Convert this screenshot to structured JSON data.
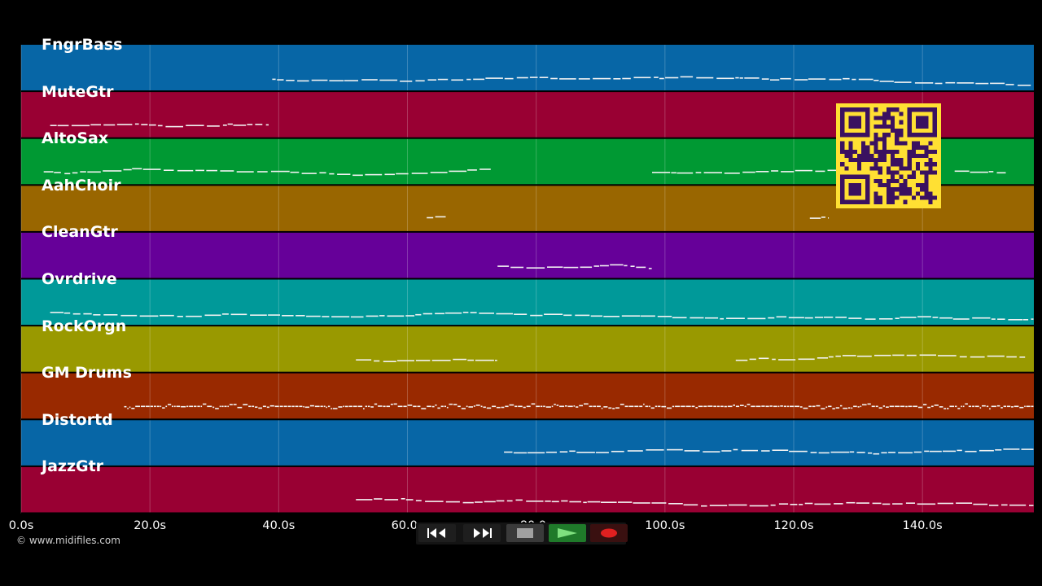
{
  "timeline": {
    "duration_s": 157.3,
    "ticks": [
      {
        "value": 0,
        "label": "0.0s"
      },
      {
        "value": 20,
        "label": "20.0s"
      },
      {
        "value": 40,
        "label": "40.0s"
      },
      {
        "value": 60,
        "label": "60.0s"
      },
      {
        "value": 80,
        "label": "80.0s"
      },
      {
        "value": 100,
        "label": "100.0s"
      },
      {
        "value": 120,
        "label": "120.0s"
      },
      {
        "value": 140,
        "label": "140.0s"
      }
    ]
  },
  "tracks": [
    {
      "name": "FngrBass",
      "color": "#0766a6",
      "segments": [
        [
          39,
          157.3
        ]
      ]
    },
    {
      "name": "MuteGtr",
      "color": "#990033",
      "segments": [
        [
          4.5,
          38.5
        ]
      ]
    },
    {
      "name": "AltoSax",
      "color": "#009933",
      "segments": [
        [
          3.5,
          73
        ],
        [
          98,
          134
        ],
        [
          145,
          153
        ]
      ]
    },
    {
      "name": "AahChoir",
      "color": "#996600",
      "segments": [
        [
          63,
          66
        ],
        [
          122.5,
          125.5
        ]
      ]
    },
    {
      "name": "CleanGtr",
      "color": "#660099",
      "segments": [
        [
          74,
          98
        ]
      ]
    },
    {
      "name": "Ovrdrive",
      "color": "#009999",
      "segments": [
        [
          4.5,
          157.3
        ]
      ]
    },
    {
      "name": "RockOrgn",
      "color": "#999900",
      "segments": [
        [
          52,
          74
        ],
        [
          111,
          156
        ]
      ]
    },
    {
      "name": "GM Drums",
      "color": "#992900",
      "segments": [
        [
          16,
          157.3
        ]
      ]
    },
    {
      "name": "Distortd",
      "color": "#0766a6",
      "segments": [
        [
          75,
          157.3
        ]
      ]
    },
    {
      "name": "JazzGtr",
      "color": "#990033",
      "segments": [
        [
          52,
          157.3
        ]
      ]
    }
  ],
  "footer": {
    "copyright": "© www.midifiles.com"
  },
  "transport": {
    "rewind_icon": "rewind-icon",
    "fast_forward_icon": "fast-forward-icon",
    "stop_icon": "stop-icon",
    "play_icon": "play-icon",
    "record_icon": "record-icon"
  }
}
